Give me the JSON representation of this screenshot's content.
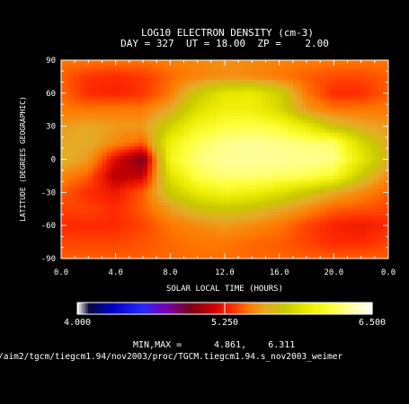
{
  "chart_data": {
    "type": "heatmap",
    "title": "LOG10 ELECTRON DENSITY (cm-3)",
    "subtitle": "DAY = 327  UT = 18.00  ZP =    2.00",
    "xlabel": "SOLAR LOCAL TIME (HOURS)",
    "ylabel": "LATITUDE (DEGREES GEOGRAPHIC)",
    "xlim": [
      0,
      24
    ],
    "ylim": [
      -90,
      90
    ],
    "x_ticks": [
      "0.0",
      "4.0",
      "8.0",
      "12.0",
      "16.0",
      "20.0",
      "0.0"
    ],
    "y_ticks": [
      "-90",
      "-60",
      "-30",
      "0",
      "30",
      "60",
      "90"
    ],
    "x_hours": [
      0,
      2,
      4,
      6,
      8,
      10,
      12,
      14,
      16,
      18,
      20,
      22,
      24
    ],
    "latitudes": [
      90,
      75,
      60,
      45,
      30,
      15,
      0,
      -15,
      -30,
      -45,
      -60,
      -75,
      -90
    ],
    "z": [
      [
        5.45,
        5.45,
        5.45,
        5.45,
        5.47,
        5.5,
        5.52,
        5.5,
        5.48,
        5.47,
        5.46,
        5.45,
        5.45
      ],
      [
        5.4,
        5.32,
        5.3,
        5.33,
        5.42,
        5.48,
        5.52,
        5.5,
        5.45,
        5.4,
        5.36,
        5.36,
        5.4
      ],
      [
        5.42,
        5.3,
        5.28,
        5.32,
        5.45,
        5.75,
        5.92,
        5.95,
        5.8,
        5.45,
        5.3,
        5.3,
        5.4
      ],
      [
        5.46,
        5.45,
        5.46,
        5.46,
        5.6,
        5.88,
        6.0,
        6.0,
        5.85,
        5.55,
        5.45,
        5.45,
        5.46
      ],
      [
        5.55,
        5.6,
        5.55,
        5.55,
        5.8,
        6.05,
        6.15,
        6.18,
        6.12,
        5.95,
        5.7,
        5.6,
        5.55
      ],
      [
        5.6,
        5.62,
        5.5,
        5.4,
        6.0,
        6.2,
        6.28,
        6.3,
        6.28,
        6.25,
        6.22,
        5.85,
        5.6
      ],
      [
        5.65,
        5.55,
        5.2,
        4.95,
        6.05,
        6.25,
        6.3,
        6.31,
        6.3,
        6.29,
        6.28,
        5.95,
        5.65
      ],
      [
        5.5,
        5.4,
        5.1,
        5.15,
        5.9,
        6.18,
        6.25,
        6.25,
        6.22,
        6.2,
        6.1,
        5.75,
        5.5
      ],
      [
        5.4,
        5.3,
        5.25,
        5.4,
        5.75,
        5.95,
        6.05,
        6.0,
        5.9,
        5.75,
        5.6,
        5.5,
        5.4
      ],
      [
        5.35,
        5.35,
        5.3,
        5.4,
        5.55,
        5.7,
        5.75,
        5.7,
        5.6,
        5.5,
        5.4,
        5.38,
        5.35
      ],
      [
        5.3,
        5.3,
        5.3,
        5.35,
        5.45,
        5.5,
        5.55,
        5.5,
        5.45,
        5.35,
        5.28,
        5.25,
        5.3
      ],
      [
        5.35,
        5.35,
        5.35,
        5.38,
        5.42,
        5.45,
        5.45,
        5.42,
        5.4,
        5.35,
        5.3,
        5.3,
        5.35
      ],
      [
        5.4,
        5.4,
        5.4,
        5.4,
        5.42,
        5.43,
        5.43,
        5.42,
        5.41,
        5.4,
        5.4,
        5.4,
        5.4
      ]
    ],
    "colorbar": {
      "min": 4.0,
      "max": 6.5,
      "labels": [
        "4.000",
        "5.250",
        "6.500"
      ]
    },
    "minmax_label": "MIN,MAX =",
    "minmax_values": "4.861,    6.311",
    "footer_path": "/aim2/tgcm/tiegcm1.94/nov2003/proc/TGCM.tiegcm1.94.s_nov2003_weimer"
  }
}
